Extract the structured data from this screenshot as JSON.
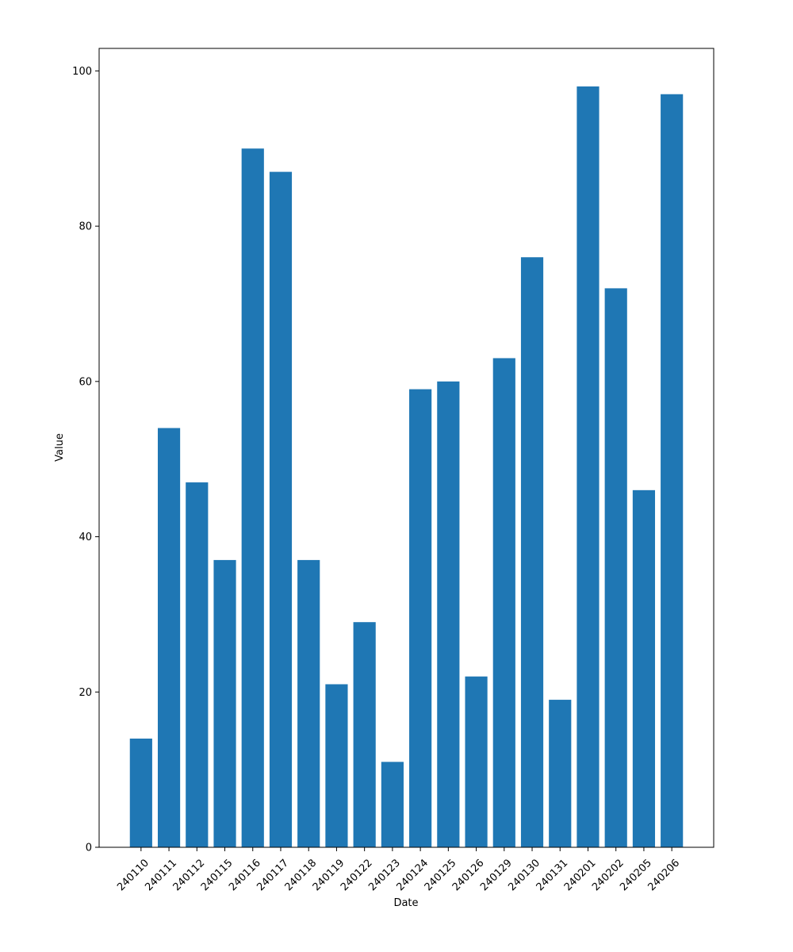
{
  "chart_data": {
    "type": "bar",
    "title": "",
    "xlabel": "Date",
    "ylabel": "Value",
    "ylim": [
      0,
      102.9
    ],
    "yticks": [
      0,
      20,
      40,
      60,
      80,
      100
    ],
    "grid": false,
    "bar_color": "#1f77b4",
    "categories": [
      "240110",
      "240111",
      "240112",
      "240115",
      "240116",
      "240117",
      "240118",
      "240119",
      "240122",
      "240123",
      "240124",
      "240125",
      "240126",
      "240129",
      "240130",
      "240131",
      "240201",
      "240202",
      "240205",
      "240206"
    ],
    "values": [
      14,
      54,
      47,
      37,
      90,
      87,
      37,
      21,
      29,
      11,
      59,
      60,
      22,
      63,
      76,
      19,
      98,
      72,
      46,
      97
    ]
  }
}
